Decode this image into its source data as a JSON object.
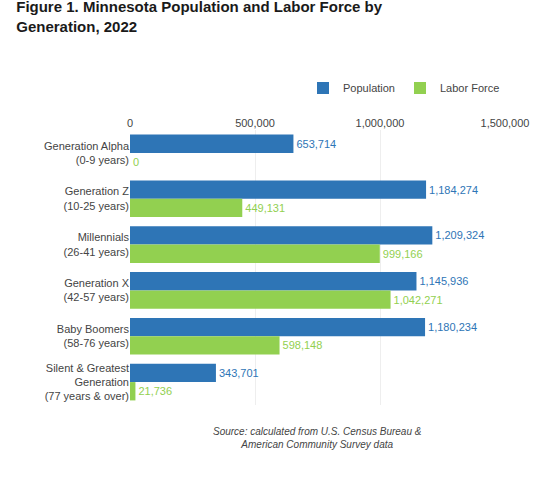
{
  "chart_data": {
    "type": "bar",
    "orientation": "horizontal",
    "title": "Figure 1. Minnesota Population and Labor Force by\nGeneration, 2022",
    "categories": [
      "Generation Alpha\n(0-9 years)",
      "Generation Z\n(10-25 years)",
      "Millennials\n(26-41 years)",
      "Generation X\n(42-57 years)",
      "Baby Boomers\n(58-76 years)",
      "Silent & Greatest\nGeneration\n(77 years & over)"
    ],
    "series": [
      {
        "name": "Population",
        "color": "#2E75B6",
        "values": [
          653714,
          1184274,
          1209324,
          1145936,
          1180234,
          343701
        ],
        "value_labels": [
          "653,714",
          "1,184,274",
          "1,209,324",
          "1,145,936",
          "1,180,234",
          "343,701"
        ]
      },
      {
        "name": "Labor Force",
        "color": "#92D050",
        "values": [
          0,
          449131,
          999166,
          1042271,
          598148,
          21736
        ],
        "value_labels": [
          "0",
          "449,131",
          "999,166",
          "1,042,271",
          "598,148",
          "21,736"
        ]
      }
    ],
    "xlim": [
      0,
      1500000
    ],
    "xticks": [
      0,
      {
        "value": 500000,
        "label": "500,000"
      },
      {
        "value": 1000000,
        "label": "1,000,000"
      },
      {
        "value": 1500000,
        "label": "1,500,000"
      }
    ],
    "grid": true,
    "legend": "upper right",
    "data_labels": true,
    "annotations": [
      "Source: calculated from U.S. Census Bureau &\nAmerican Community Survey data"
    ]
  }
}
